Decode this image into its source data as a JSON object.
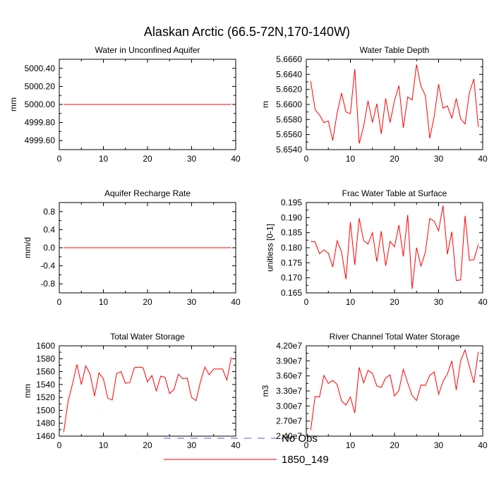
{
  "colors": {
    "model": "#ff0000",
    "obs": "#5b5bd6"
  },
  "legend": {
    "entries": [
      {
        "name": "No Obs",
        "style": "dashed",
        "color": "#5b5bd6"
      },
      {
        "name": "1850_149",
        "style": "solid",
        "color": "#ff0000"
      }
    ]
  },
  "chart_data": {
    "title": "Alaskan Arctic (66.5-72N,170-140W)",
    "panels": [
      {
        "type": "line",
        "title": "Water in Unconfined Aquifer",
        "ylabel": "mm",
        "xlim": [
          0,
          40
        ],
        "ylim": [
          4999.5,
          5000.5
        ],
        "xticks": [
          "0",
          "10",
          "20",
          "30",
          "40"
        ],
        "yticks": [
          4999.6,
          4999.8,
          5000.0,
          5000.2,
          5000.4
        ],
        "yticklabels": [
          "4999.60",
          "4999.80",
          "5000.00",
          "5000.20",
          "5000.40"
        ],
        "series": [
          {
            "name": "1850_149",
            "x": [
              1,
              39
            ],
            "values": [
              5000.0,
              5000.0
            ]
          }
        ]
      },
      {
        "type": "line",
        "title": "Water Table Depth",
        "ylabel": "m",
        "xlim": [
          0,
          40
        ],
        "ylim": [
          5.654,
          5.666
        ],
        "xticks": [
          "0",
          "10",
          "20",
          "30",
          "40"
        ],
        "yticks": [
          5.654,
          5.656,
          5.658,
          5.66,
          5.662,
          5.664,
          5.666
        ],
        "yticklabels": [
          "5.6540",
          "5.6560",
          "5.6580",
          "5.6600",
          "5.6620",
          "5.6640",
          "5.6660"
        ],
        "series": [
          {
            "name": "1850_149",
            "x": [
              1,
              2,
              3,
              4,
              5,
              6,
              7,
              8,
              9,
              10,
              11,
              12,
              13,
              14,
              15,
              16,
              17,
              18,
              19,
              20,
              21,
              22,
              23,
              24,
              25,
              26,
              27,
              28,
              29,
              30,
              31,
              32,
              33,
              34,
              35,
              36,
              37,
              38,
              39
            ],
            "values": [
              5.6631,
              5.6593,
              5.6586,
              5.6576,
              5.6578,
              5.6552,
              5.6589,
              5.6615,
              5.659,
              5.6588,
              5.6647,
              5.6548,
              5.6571,
              5.6605,
              5.6576,
              5.6601,
              5.6561,
              5.6608,
              5.6576,
              5.6605,
              5.6625,
              5.6569,
              5.661,
              5.6606,
              5.6653,
              5.6624,
              5.6612,
              5.6555,
              5.6584,
              5.6627,
              5.6595,
              5.6598,
              5.6582,
              5.6608,
              5.6581,
              5.6574,
              5.6616,
              5.6634,
              5.657
            ]
          }
        ]
      },
      {
        "type": "line",
        "title": "Aquifer Recharge Rate",
        "ylabel": "mm/d",
        "xlim": [
          0,
          40
        ],
        "ylim": [
          -1.0,
          1.0
        ],
        "xticks": [
          "0",
          "10",
          "20",
          "30",
          "40"
        ],
        "yticks": [
          -0.8,
          -0.4,
          0.0,
          0.4,
          0.8
        ],
        "yticklabels": [
          "-0.8",
          "-0.4",
          "0.0",
          "0.4",
          "0.8"
        ],
        "series": [
          {
            "name": "1850_149",
            "x": [
              1,
              39
            ],
            "values": [
              0.0,
              0.0
            ]
          }
        ]
      },
      {
        "type": "line",
        "title": "Frac Water Table at Surface",
        "ylabel": "unitless [0-1]",
        "xlim": [
          0,
          40
        ],
        "ylim": [
          0.165,
          0.195
        ],
        "xticks": [
          "0",
          "10",
          "20",
          "30",
          "40"
        ],
        "yticks": [
          0.165,
          0.17,
          0.175,
          0.18,
          0.185,
          0.19,
          0.195
        ],
        "yticklabels": [
          "0.165",
          "0.170",
          "0.175",
          "0.180",
          "0.185",
          "0.190",
          "0.195"
        ],
        "series": [
          {
            "name": "1850_149",
            "x": [
              1,
              2,
              3,
              4,
              5,
              6,
              7,
              8,
              9,
              10,
              11,
              12,
              13,
              14,
              15,
              16,
              17,
              18,
              19,
              20,
              21,
              22,
              23,
              24,
              25,
              26,
              27,
              28,
              29,
              30,
              31,
              32,
              33,
              34,
              35,
              36,
              37,
              38,
              39
            ],
            "values": [
              0.1821,
              0.1819,
              0.178,
              0.1793,
              0.1782,
              0.1736,
              0.1823,
              0.1785,
              0.1695,
              0.1885,
              0.1743,
              0.1898,
              0.1824,
              0.1812,
              0.185,
              0.1754,
              0.1855,
              0.174,
              0.1821,
              0.1803,
              0.1875,
              0.1771,
              0.1909,
              0.1663,
              0.18,
              0.1739,
              0.1785,
              0.1897,
              0.1888,
              0.1856,
              0.194,
              0.1778,
              0.1853,
              0.1691,
              0.1693,
              0.1906,
              0.1758,
              0.176,
              0.181
            ]
          }
        ]
      },
      {
        "type": "line",
        "title": "Total Water Storage",
        "ylabel": "mm",
        "xlim": [
          0,
          40
        ],
        "ylim": [
          1460,
          1600
        ],
        "xticks": [
          "0",
          "10",
          "20",
          "30",
          "40"
        ],
        "yticks": [
          1460,
          1480,
          1500,
          1520,
          1540,
          1560,
          1580,
          1600
        ],
        "yticklabels": [
          "1460",
          "1480",
          "1500",
          "1520",
          "1540",
          "1560",
          "1580",
          "1600"
        ],
        "series": [
          {
            "name": "1850_149",
            "x": [
              1,
              2,
              3,
              4,
              5,
              6,
              7,
              8,
              9,
              10,
              11,
              12,
              13,
              14,
              15,
              16,
              17,
              18,
              19,
              20,
              21,
              22,
              23,
              24,
              25,
              26,
              27,
              28,
              29,
              30,
              31,
              32,
              33,
              34,
              35,
              36,
              37,
              38,
              39
            ],
            "values": [
              1466,
              1514,
              1541,
              1571,
              1540,
              1569,
              1556,
              1522,
              1558,
              1549,
              1519,
              1516,
              1557,
              1560,
              1542,
              1543,
              1566,
              1567,
              1566,
              1544,
              1554,
              1530,
              1553,
              1551,
              1526,
              1532,
              1556,
              1549,
              1550,
              1520,
              1515,
              1544,
              1567,
              1555,
              1564,
              1564,
              1564,
              1547,
              1582
            ]
          }
        ]
      },
      {
        "type": "line",
        "title": "River Channel Total Water Storage",
        "ylabel": "m3",
        "xlim": [
          0,
          40
        ],
        "ylim": [
          24000000,
          42000000
        ],
        "xticks": [
          "0",
          "10",
          "20",
          "30",
          "40"
        ],
        "yticks": [
          24000000,
          27000000,
          30000000,
          33000000,
          36000000,
          39000000,
          42000000
        ],
        "yticklabels": [
          "2.40e7",
          "2.70e7",
          "3.00e7",
          "3.30e7",
          "3.60e7",
          "3.90e7",
          "4.20e7"
        ],
        "series": [
          {
            "name": "1850_149",
            "x": [
              1,
              2,
              3,
              4,
              5,
              6,
              7,
              8,
              9,
              10,
              11,
              12,
              13,
              14,
              15,
              16,
              17,
              18,
              19,
              20,
              21,
              22,
              23,
              24,
              25,
              26,
              27,
              28,
              29,
              30,
              31,
              32,
              33,
              34,
              35,
              36,
              37,
              38,
              39
            ],
            "values": [
              25200000,
              31900000,
              31800000,
              36100000,
              34500000,
              35100000,
              34300000,
              31000000,
              30200000,
              31800000,
              28600000,
              37700000,
              34600000,
              37100000,
              36500000,
              34000000,
              33700000,
              35600000,
              36200000,
              32000000,
              33100000,
              37300000,
              34600000,
              32100000,
              31100000,
              34200000,
              34100000,
              36100000,
              36800000,
              32300000,
              34900000,
              36400000,
              39000000,
              33200000,
              39000000,
              41200000,
              37800000,
              34600000,
              40800000
            ]
          }
        ]
      }
    ]
  }
}
